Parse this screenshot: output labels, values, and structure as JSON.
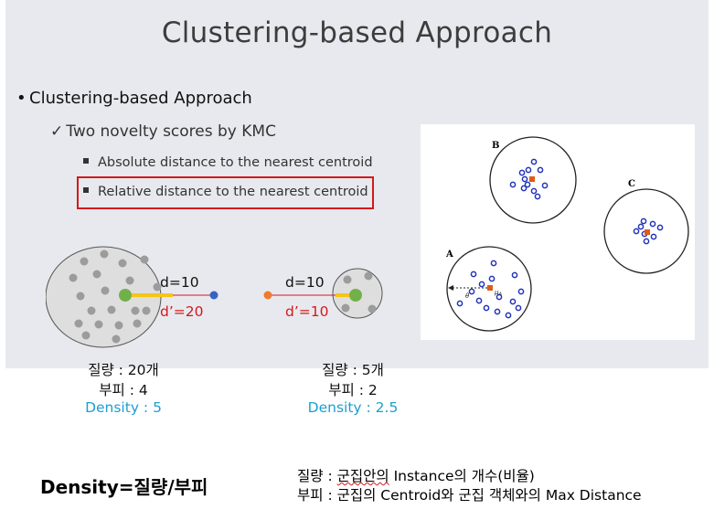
{
  "slide": {
    "title": "Clustering-based Approach",
    "bullet1": "Clustering-based Approach",
    "bullet1_marker": "•",
    "bullet2": "Two novelty scores by KMC",
    "bullet2_marker": "✓",
    "bullet3a": "Absolute distance to the nearest centroid",
    "bullet3b": "Relative distance to the nearest centroid"
  },
  "figure": {
    "cluster_labels": [
      "A",
      "B",
      "C"
    ],
    "axis_label": "θ",
    "centroid_label": "μ",
    "centroid_subscript": "A"
  },
  "diagram": {
    "left": {
      "d": "d=10",
      "dprime": "d’=20"
    },
    "right": {
      "d": "d=10",
      "dprime": "d’=10"
    },
    "colors": {
      "gray": "#9c9c9c",
      "green": "#72b14a",
      "blue": "#3465c4",
      "orange": "#ee7b30",
      "yellow": "#f5c518",
      "red": "#d21a1a"
    }
  },
  "captions": {
    "left": {
      "mass": "질량 : 20개",
      "volume": "부피 : 4",
      "density": "Density : 5"
    },
    "right": {
      "mass": "질량 : 5개",
      "volume": "부피 : 2",
      "density": "Density : 2.5"
    }
  },
  "formula": "Density=질량/부피",
  "definitions": {
    "mass_prefix": "질량 : ",
    "mass_underlined": "군집안의",
    "mass_rest": " Instance의 개수(비율)",
    "volume": "부피 : 군집의 Centroid와 군집 객체와의 Max Distance"
  }
}
